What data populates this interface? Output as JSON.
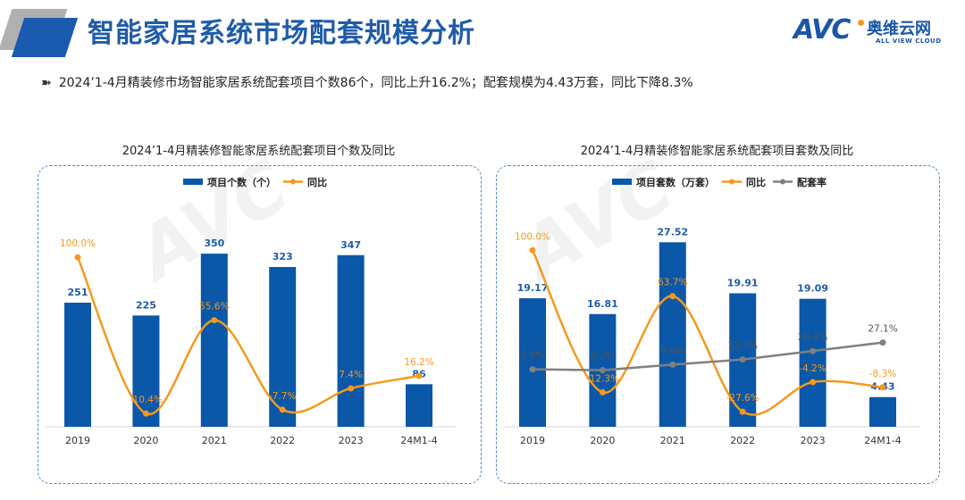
{
  "header": {
    "title": "智能家居系统市场配套规模分析",
    "logo_text": "AVC",
    "logo_cn": "奥维云网",
    "logo_en": "ALL VIEW CLOUD"
  },
  "summary": "2024’1-4月精装修市场智能家居系统配套项目个数86个，同比上升16.2%；配套规模为4.43万套，同比下降8.3%",
  "colors": {
    "bar": "#0b57a8",
    "yoy": "#f39a1e",
    "rate": "#808080",
    "title": "#1f5ca8"
  },
  "chart_data": [
    {
      "type": "bar+line",
      "title": "2024’1-4月精装修智能家居系统配套项目个数及同比",
      "categories": [
        "2019",
        "2020",
        "2021",
        "2022",
        "2023",
        "24M1-4"
      ],
      "series": [
        {
          "name": "项目个数（个）",
          "type": "bar",
          "values": [
            251,
            225,
            350,
            323,
            347,
            86
          ],
          "labels": [
            "251",
            "225",
            "350",
            "323",
            "347",
            "86"
          ]
        },
        {
          "name": "同比",
          "type": "line",
          "values": [
            100.0,
            -10.4,
            55.6,
            -7.7,
            7.4,
            16.2
          ],
          "labels": [
            "100.0%",
            "-10.4%",
            "55.6%",
            "-7.7%",
            "7.4%",
            "16.2%"
          ]
        }
      ],
      "legend": "top"
    },
    {
      "type": "bar+line",
      "title": "2024’1-4月精装修智能家居系统配套项目套数及同比",
      "categories": [
        "2019",
        "2020",
        "2021",
        "2022",
        "2023",
        "24M1-4"
      ],
      "series": [
        {
          "name": "项目套数（万套）",
          "type": "bar",
          "values": [
            19.17,
            16.81,
            27.52,
            19.91,
            19.09,
            4.43
          ],
          "labels": [
            "19.17",
            "16.81",
            "27.52",
            "19.91",
            "19.09",
            "4.43"
          ]
        },
        {
          "name": "同比",
          "type": "line",
          "values": [
            100.0,
            -12.3,
            63.7,
            -27.6,
            -4.2,
            -8.3
          ],
          "labels": [
            "100.0%",
            "-12.3%",
            "63.7%",
            "-27.6%",
            "-4.2%",
            "-8.3%"
          ]
        },
        {
          "name": "配套率",
          "type": "line",
          "values": [
            5.9,
            5.2,
            9.6,
            13.7,
            20.4,
            27.1
          ],
          "labels": [
            "5.9%",
            "5.2%",
            "9.6%",
            "13.7%",
            "20.4%",
            "27.1%"
          ]
        }
      ],
      "legend": "top"
    }
  ]
}
